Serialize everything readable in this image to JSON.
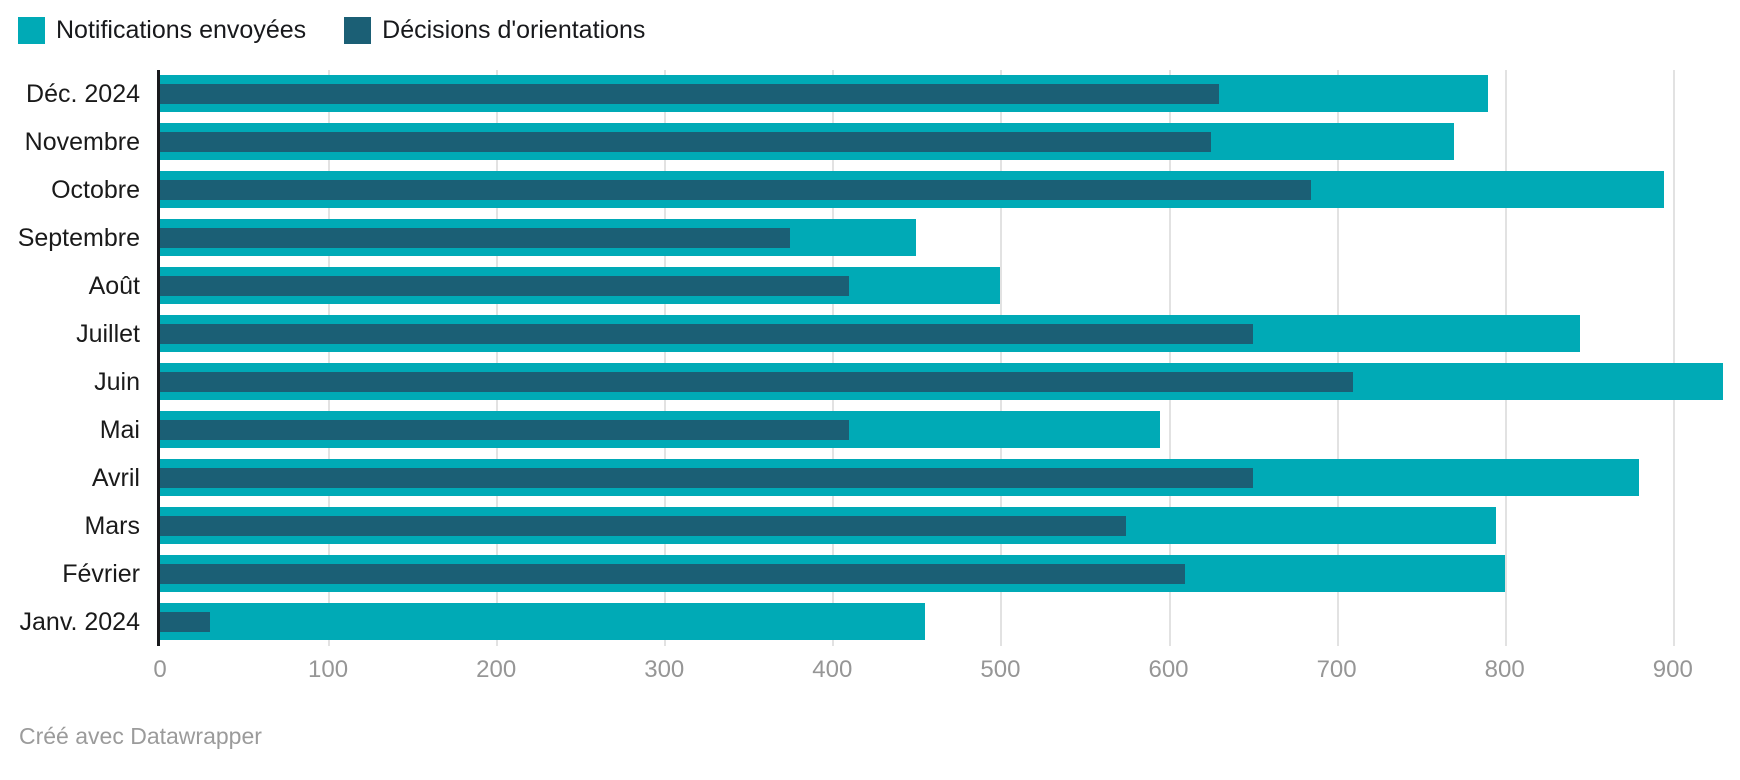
{
  "legend": [
    {
      "label": "Notifications envoyées",
      "color": "#00aab6"
    },
    {
      "label": "Décisions d'orientations",
      "color": "#1b5f75"
    }
  ],
  "footer": {
    "credit": "Créé avec Datawrapper"
  },
  "chart_data": {
    "type": "bar",
    "orientation": "horizontal",
    "title": "",
    "xlabel": "",
    "ylabel": "",
    "categories": [
      "Déc. 2024",
      "Novembre",
      "Octobre",
      "Septembre",
      "Août",
      "Juillet",
      "Juin",
      "Mai",
      "Avril",
      "Mars",
      "Février",
      "Janv. 2024"
    ],
    "series": [
      {
        "name": "Notifications envoyées",
        "color": "#00aab6",
        "values": [
          790,
          770,
          895,
          450,
          500,
          845,
          930,
          595,
          880,
          795,
          800,
          455
        ]
      },
      {
        "name": "Décisions d'orientations",
        "color": "#1b5f75",
        "values": [
          630,
          625,
          685,
          375,
          410,
          650,
          710,
          410,
          650,
          575,
          610,
          30
        ]
      }
    ],
    "x_ticks": [
      0,
      100,
      200,
      300,
      400,
      500,
      600,
      700,
      800,
      900
    ],
    "xlim": [
      0,
      940
    ],
    "grid": true,
    "legend_position": "top-left",
    "colors": {
      "grid": "#e2e2e2",
      "axis": "#18191c",
      "tick_text": "#969696",
      "category_text": "#1a1a1a"
    }
  }
}
